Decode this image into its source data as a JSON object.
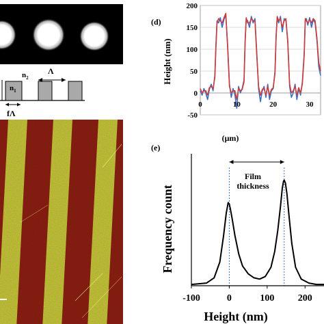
{
  "diffraction_panel": {
    "background_color": "#000000",
    "spot_color": "#ffffff",
    "spots": 3
  },
  "grating_schematic": {
    "n1_label": "n",
    "n1_sub": "1",
    "n2_label": "n",
    "n2_sub": "2",
    "period_label": "Λ",
    "width_label": "fΛ",
    "block_color": "#a9a9a9"
  },
  "afm_panel": {
    "colors": {
      "red": "#8e1f12",
      "yellow": "#c9c83a"
    },
    "stripes": 5
  },
  "panel_d": {
    "label": "(d)",
    "chart_data": {
      "type": "line",
      "xlabel": "(μm)",
      "ylabel": "Height (nm)",
      "xlim": [
        0,
        33
      ],
      "ylim": [
        -50,
        200
      ],
      "xticks": [
        "0",
        "10",
        "20",
        "30"
      ],
      "xtick_values": [
        0,
        10,
        20,
        30
      ],
      "yticks": [
        "-50",
        "0",
        "50",
        "100",
        "150",
        "200"
      ],
      "ytick_values": [
        -50,
        0,
        50,
        100,
        150,
        200
      ],
      "grid": true,
      "series": [
        {
          "color": "#3a6fc4",
          "x": [
            0,
            0.5,
            1,
            1.5,
            2,
            2.5,
            3,
            3.5,
            4,
            4.3,
            4.6,
            5,
            5.5,
            6,
            6.5,
            7,
            7.5,
            8,
            8.5,
            9,
            9.5,
            10,
            10.5,
            11,
            11.5,
            12,
            12.3,
            12.6,
            13,
            13.5,
            14,
            14.5,
            15,
            15.5,
            16,
            16.5,
            17,
            17.5,
            18,
            18.5,
            19,
            19.5,
            20,
            20.5,
            20.8,
            21.1,
            21.5,
            22,
            22.5,
            23,
            23.5,
            24,
            24.5,
            25,
            25.5,
            26,
            26.5,
            27,
            27.5,
            28,
            28.5,
            28.8,
            29.1,
            29.5,
            30,
            30.5,
            31,
            31.5,
            32,
            32.5,
            33
          ],
          "y": [
            5,
            -5,
            10,
            0,
            -15,
            8,
            20,
            5,
            40,
            110,
            165,
            160,
            172,
            150,
            168,
            178,
            110,
            20,
            -10,
            10,
            -5,
            -35,
            15,
            0,
            10,
            30,
            120,
            168,
            165,
            150,
            175,
            160,
            170,
            90,
            10,
            -20,
            5,
            15,
            -10,
            20,
            -15,
            5,
            10,
            50,
            130,
            170,
            160,
            175,
            140,
            170,
            165,
            120,
            15,
            -10,
            0,
            20,
            -15,
            10,
            -5,
            25,
            90,
            165,
            170,
            155,
            172,
            150,
            168,
            160,
            120,
            60,
            40
          ]
        },
        {
          "color": "#d03a3a",
          "x": [
            0,
            0.5,
            1,
            1.5,
            2,
            2.5,
            3,
            3.5,
            4,
            4.3,
            4.6,
            5,
            5.5,
            6,
            6.5,
            7,
            7.5,
            8,
            8.5,
            9,
            9.5,
            10,
            10.5,
            11,
            11.5,
            12,
            12.3,
            12.6,
            13,
            13.5,
            14,
            14.5,
            15,
            15.5,
            16,
            16.5,
            17,
            17.5,
            18,
            18.5,
            19,
            19.5,
            20,
            20.5,
            20.8,
            21.1,
            21.5,
            22,
            22.5,
            23,
            23.5,
            24,
            24.5,
            25,
            25.5,
            26,
            26.5,
            27,
            27.5,
            28,
            28.5,
            28.8,
            29.1,
            29.5,
            30,
            30.5,
            31,
            31.5,
            32,
            32.5,
            33
          ],
          "y": [
            10,
            0,
            5,
            5,
            -5,
            12,
            15,
            10,
            35,
            105,
            160,
            170,
            165,
            160,
            172,
            182,
            105,
            15,
            0,
            5,
            5,
            -15,
            10,
            5,
            8,
            25,
            115,
            172,
            160,
            160,
            170,
            165,
            165,
            85,
            15,
            -5,
            8,
            10,
            -5,
            15,
            -5,
            8,
            12,
            45,
            125,
            175,
            165,
            170,
            150,
            165,
            170,
            115,
            20,
            0,
            5,
            15,
            -5,
            12,
            0,
            20,
            85,
            170,
            165,
            160,
            168,
            160,
            170,
            165,
            125,
            70,
            50
          ]
        }
      ]
    }
  },
  "panel_e": {
    "label": "(e)",
    "annotation_line1": "Film",
    "annotation_line2": "thickness",
    "chart_data": {
      "type": "line",
      "xlabel": "Height (nm)",
      "ylabel": "Frequency count",
      "xlim": [
        -100,
        250
      ],
      "xticks": [
        "-100",
        "0",
        "100",
        "200"
      ],
      "xtick_values": [
        -100,
        0,
        100,
        200
      ],
      "peaks": [
        0,
        145
      ],
      "series": [
        {
          "color": "#000000",
          "x": [
            -100,
            -60,
            -40,
            -25,
            -15,
            -8,
            -3,
            0,
            3,
            8,
            15,
            25,
            35,
            50,
            65,
            80,
            95,
            110,
            120,
            128,
            135,
            140,
            143,
            145,
            148,
            152,
            158,
            165,
            175,
            190,
            210,
            230,
            250
          ],
          "y": [
            0.01,
            0.02,
            0.06,
            0.18,
            0.38,
            0.55,
            0.63,
            0.62,
            0.58,
            0.5,
            0.38,
            0.24,
            0.15,
            0.09,
            0.06,
            0.05,
            0.07,
            0.14,
            0.26,
            0.42,
            0.6,
            0.74,
            0.79,
            0.8,
            0.78,
            0.7,
            0.52,
            0.32,
            0.14,
            0.05,
            0.02,
            0.01,
            0.01
          ]
        }
      ]
    }
  }
}
